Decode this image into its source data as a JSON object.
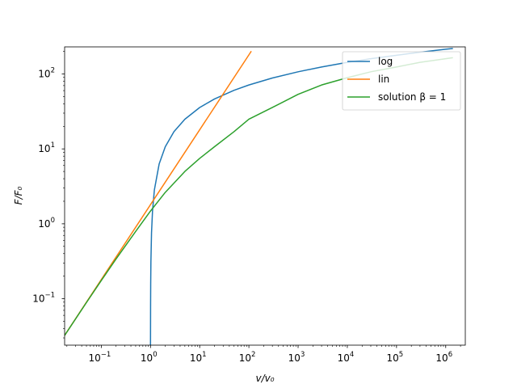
{
  "chart_data": {
    "type": "line",
    "title": "",
    "xlabel": "v/v₀",
    "ylabel": "F/F₀",
    "xscale": "log",
    "yscale": "log",
    "xlim": [
      0.018,
      2500000
    ],
    "ylim": [
      0.024,
      230
    ],
    "grid": false,
    "legend_position": "top-right",
    "x_ticks": [
      {
        "value": 0.1,
        "base": "10",
        "exp": "−1"
      },
      {
        "value": 1,
        "base": "10",
        "exp": "0"
      },
      {
        "value": 10,
        "base": "10",
        "exp": "1"
      },
      {
        "value": 100,
        "base": "10",
        "exp": "2"
      },
      {
        "value": 1000,
        "base": "10",
        "exp": "3"
      },
      {
        "value": 10000,
        "base": "10",
        "exp": "4"
      },
      {
        "value": 100000,
        "base": "10",
        "exp": "5"
      },
      {
        "value": 1000000,
        "base": "10",
        "exp": "6"
      }
    ],
    "y_ticks": [
      {
        "value": 0.1,
        "base": "10",
        "exp": "−1"
      },
      {
        "value": 1,
        "base": "10",
        "exp": "0"
      },
      {
        "value": 10,
        "base": "10",
        "exp": "1"
      },
      {
        "value": 100,
        "base": "10",
        "exp": "2"
      }
    ],
    "series": [
      {
        "name": "log",
        "color": "#1f77b4",
        "x": [
          1.0,
          1.001,
          1.002,
          1.005,
          1.01,
          1.02,
          1.05,
          1.1,
          1.2,
          1.5,
          2,
          3,
          5,
          10,
          20,
          50,
          100,
          300,
          1000,
          3000,
          10000,
          30000,
          100000,
          300000,
          1000000,
          1400000
        ],
        "y": [
          0.024,
          0.024,
          0.031,
          0.0775,
          0.155,
          0.307,
          0.756,
          1.48,
          2.83,
          6.28,
          10.7,
          17.0,
          24.9,
          35.7,
          46.4,
          60.6,
          71.3,
          88.3,
          107,
          124,
          143,
          160,
          178,
          195,
          214,
          219
        ]
      },
      {
        "name": "lin",
        "color": "#ff7f0e",
        "x": [
          0.018,
          0.1,
          1,
          10,
          100,
          112
        ],
        "y": [
          0.0324,
          0.18,
          1.8,
          18,
          180,
          201.6
        ]
      },
      {
        "name": "solution β = 1",
        "color": "#2ca02c",
        "x": [
          0.018,
          0.05,
          0.1,
          0.2,
          0.5,
          1,
          2,
          5,
          10,
          20,
          50,
          100,
          300,
          1000,
          3000,
          10000,
          30000,
          100000,
          300000,
          1000000,
          1400000
        ],
        "y": [
          0.0324,
          0.089,
          0.175,
          0.34,
          0.79,
          1.48,
          2.63,
          5.0,
          7.47,
          10.7,
          17.0,
          24.9,
          35.7,
          53.5,
          71.3,
          89.2,
          107,
          124,
          143,
          160,
          165
        ]
      }
    ]
  }
}
